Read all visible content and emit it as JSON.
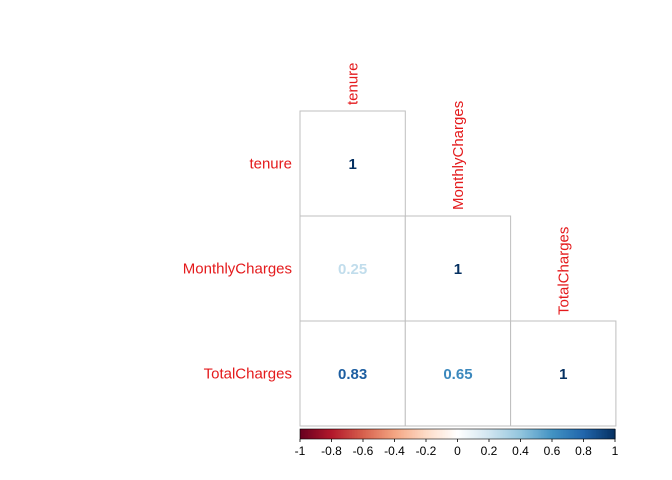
{
  "chart_data": {
    "type": "heatmap",
    "variables": [
      "tenure",
      "MonthlyCharges",
      "TotalCharges"
    ],
    "matrix": [
      [
        1,
        null,
        null
      ],
      [
        0.25,
        1,
        null
      ],
      [
        0.83,
        0.65,
        1
      ]
    ],
    "cells": [
      {
        "row": "tenure",
        "col": "tenure",
        "label": "1",
        "value": 1
      },
      {
        "row": "MonthlyCharges",
        "col": "tenure",
        "label": "0.25",
        "value": 0.25
      },
      {
        "row": "MonthlyCharges",
        "col": "MonthlyCharges",
        "label": "1",
        "value": 1
      },
      {
        "row": "TotalCharges",
        "col": "tenure",
        "label": "0.83",
        "value": 0.83
      },
      {
        "row": "TotalCharges",
        "col": "MonthlyCharges",
        "label": "0.65",
        "value": 0.65
      },
      {
        "row": "TotalCharges",
        "col": "TotalCharges",
        "label": "1",
        "value": 1
      }
    ],
    "shape": "lower-triangle",
    "label_color": "#e41a1c",
    "colorbar": {
      "range": [
        -1,
        1
      ],
      "ticks": [
        "-1",
        "-0.8",
        "-0.6",
        "-0.4",
        "-0.2",
        "0",
        "0.2",
        "0.4",
        "0.6",
        "0.8",
        "1"
      ],
      "palette": [
        "#67001f",
        "#b2182b",
        "#d6604d",
        "#f4a582",
        "#fddbc7",
        "#ffffff",
        "#d1e5f0",
        "#92c5de",
        "#4393c3",
        "#2166ac",
        "#053061"
      ]
    }
  }
}
